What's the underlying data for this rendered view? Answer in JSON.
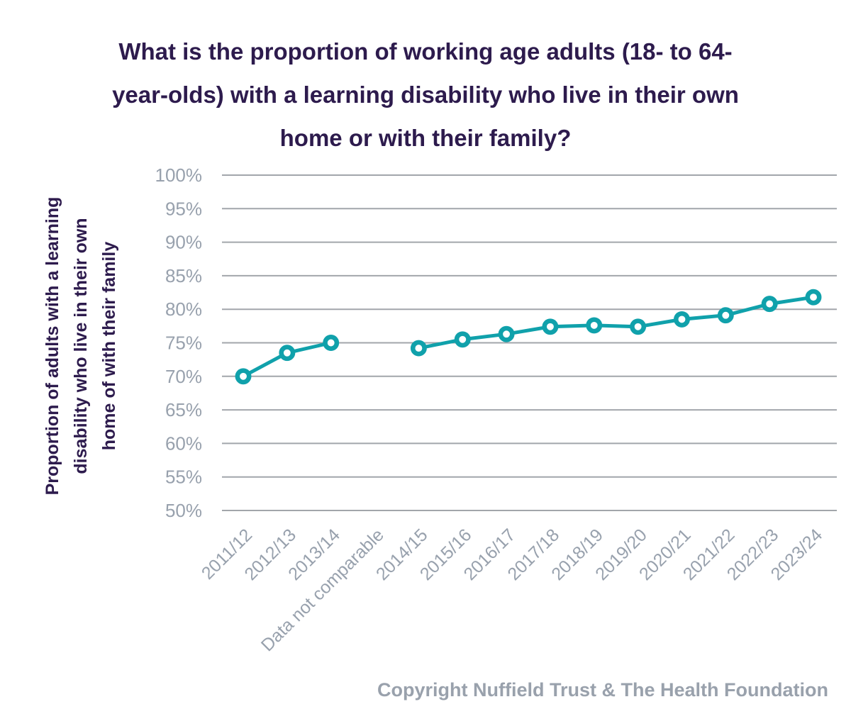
{
  "title": "What is the proportion of working age adults (18- to 64-year-olds) with a learning disability who live in their own home or with their family?",
  "title_lines": [
    "What is the proportion of working age adults (18- to 64-",
    "year-olds) with a learning disability who live in their own",
    "home or with their family?"
  ],
  "ylabel_lines": [
    "Proportion of adults with a learning",
    "disability who live in their own",
    "home of with their family"
  ],
  "copyright": "Copyright Nuffield Trust & The Health Foundation",
  "colors": {
    "line": "#10a1ab",
    "marker_fill": "#ffffff",
    "title_text": "#2d1b4d",
    "axis_text": "#98a1ad",
    "gridline": "#a2a6ab"
  },
  "chart_data": {
    "type": "line",
    "title": "What is the proportion of working age adults (18- to 64-year-olds) with a learning disability who live in their own home or with their family?",
    "xlabel": "",
    "ylabel": "Proportion of adults with a learning disability who live in their own home of with their family",
    "categories": [
      "2011/12",
      "2012/13",
      "2013/14",
      "Data not comparable",
      "2014/15",
      "2015/16",
      "2016/17",
      "2017/18",
      "2018/19",
      "2019/20",
      "2020/21",
      "2021/22",
      "2022/23",
      "2023/24"
    ],
    "values": [
      70.0,
      73.5,
      75.0,
      null,
      74.2,
      75.5,
      76.3,
      77.4,
      77.6,
      77.4,
      78.5,
      79.1,
      80.8,
      81.8
    ],
    "ylim": [
      50,
      100
    ],
    "ytick_step": 5,
    "ytick_format": "percent",
    "grid": true,
    "legend": false,
    "marker": "circle-open",
    "gap_category": "Data not comparable"
  }
}
